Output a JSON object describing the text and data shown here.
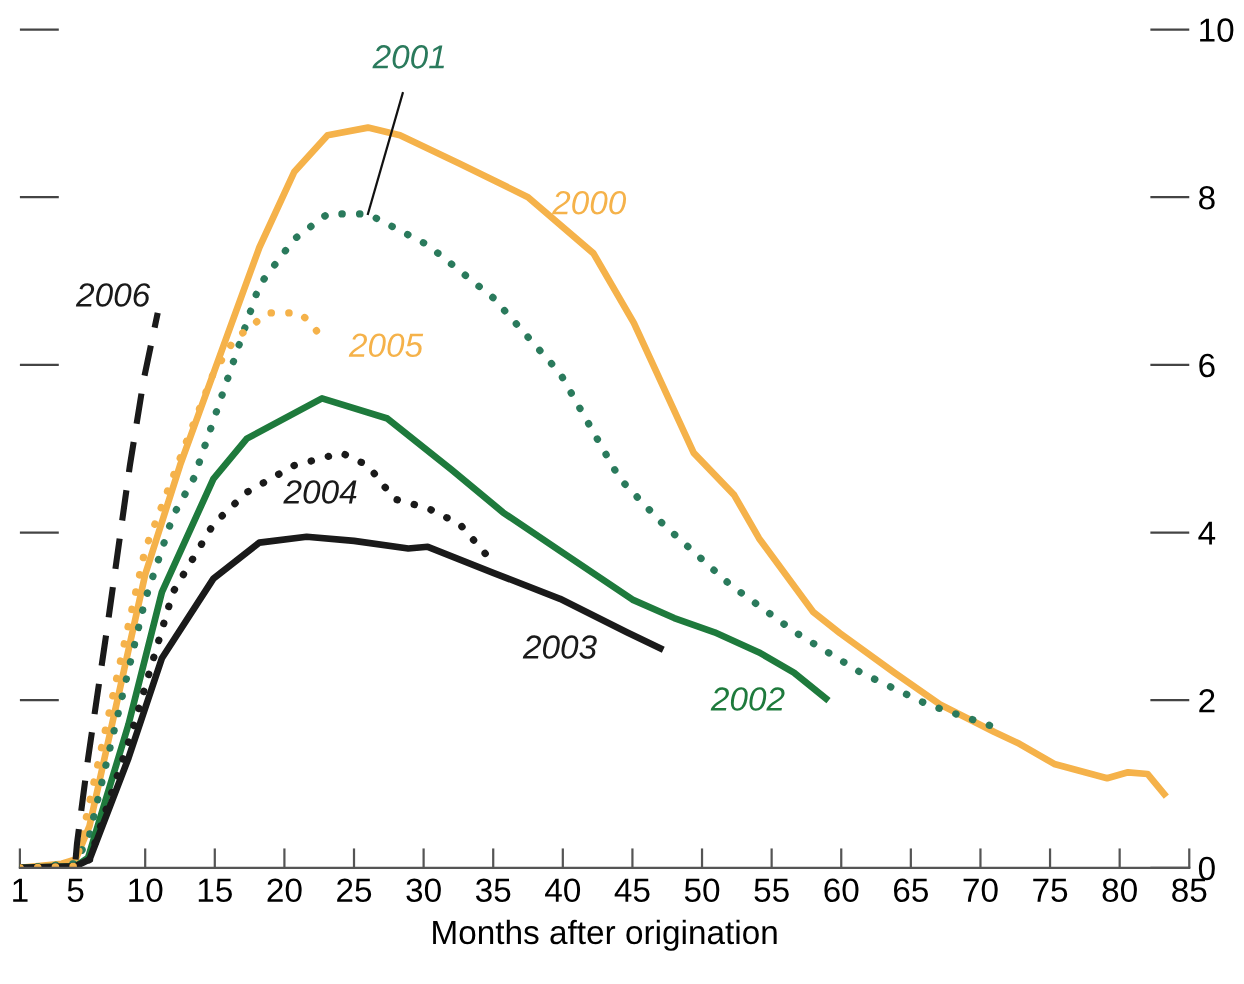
{
  "chart_data": {
    "type": "line",
    "xlabel": "Months after origination",
    "xlim": [
      1,
      85
    ],
    "xticks": [
      1,
      5,
      10,
      15,
      20,
      25,
      30,
      35,
      40,
      45,
      50,
      55,
      60,
      65,
      70,
      75,
      80,
      85
    ],
    "ylim": [
      0,
      10
    ],
    "yticks": [
      0,
      2,
      4,
      6,
      8,
      10
    ],
    "grid": false,
    "legend": false,
    "marker": "none",
    "series": [
      {
        "name": "2000",
        "color": "#f5b24a",
        "line_style": "solid",
        "x": [
          1,
          4,
          5,
          6,
          8,
          10,
          12.5,
          16,
          18.2,
          20.7,
          23.1,
          26,
          28.3,
          32.6,
          37.5,
          42.2,
          45.1,
          49.4,
          52.3,
          54.1,
          58,
          59.9,
          63.8,
          67.1,
          71,
          72.8,
          75.3,
          79.1,
          80.6,
          82,
          83.2
        ],
        "values": [
          0,
          0.05,
          0.1,
          0.5,
          2.0,
          3.5,
          4.8,
          6.4,
          7.4,
          8.3,
          8.74,
          8.83,
          8.74,
          8.4,
          8.0,
          7.33,
          6.5,
          4.95,
          4.45,
          3.93,
          3.05,
          2.8,
          2.33,
          1.95,
          1.62,
          1.48,
          1.24,
          1.07,
          1.14,
          1.12,
          0.88
        ]
      },
      {
        "name": "2001",
        "color": "#2a7a5c",
        "line_style": "dotted",
        "x": [
          1,
          5,
          6,
          8,
          10,
          12,
          13.5,
          18.2,
          20.7,
          23.1,
          26,
          30.3,
          35,
          39.8,
          44.1,
          47.2,
          52,
          56.7,
          61.4,
          66.2,
          71.2
        ],
        "values": [
          0,
          0.05,
          0.4,
          1.8,
          3.2,
          4.2,
          4.65,
          6.95,
          7.5,
          7.8,
          7.8,
          7.43,
          6.8,
          5.9,
          4.64,
          4.1,
          3.38,
          2.81,
          2.33,
          1.95,
          1.67
        ]
      },
      {
        "name": "2002",
        "color": "#1e7a3c",
        "line_style": "solid",
        "x": [
          1,
          5,
          5.9,
          8.8,
          11.2,
          14.9,
          17.3,
          22.7,
          27.4,
          32,
          35.7,
          40,
          45,
          48,
          50.9,
          54.1,
          56.6,
          58.9
        ],
        "values": [
          0,
          0.02,
          0.12,
          1.71,
          3.29,
          4.64,
          5.12,
          5.6,
          5.36,
          4.75,
          4.24,
          3.76,
          3.2,
          2.98,
          2.81,
          2.57,
          2.33,
          2.02
        ]
      },
      {
        "name": "2003",
        "color": "#1a1a1a",
        "line_style": "solid",
        "x": [
          1,
          5,
          6,
          8.8,
          11.2,
          14.9,
          18.2,
          21.6,
          25,
          28.9,
          30.3,
          35,
          39.8,
          44.6,
          47
        ],
        "values": [
          0,
          0.02,
          0.1,
          1.31,
          2.5,
          3.45,
          3.88,
          3.95,
          3.9,
          3.81,
          3.83,
          3.52,
          3.21,
          2.81,
          2.62
        ]
      },
      {
        "name": "2004",
        "color": "#1a1a1a",
        "line_style": "dotted",
        "x": [
          1,
          5,
          6,
          9,
          12,
          14.9,
          17.3,
          20.7,
          24.1,
          26,
          27.9,
          30.3,
          32.6,
          35
        ],
        "values": [
          0,
          0.02,
          0.1,
          1.6,
          3.29,
          4.1,
          4.48,
          4.8,
          4.95,
          4.8,
          4.4,
          4.29,
          4.1,
          3.64
        ]
      },
      {
        "name": "2005",
        "color": "#f5b24a",
        "line_style": "dotted",
        "x": [
          1,
          5,
          8,
          10,
          13,
          14.9,
          16.4,
          18.8,
          21.1,
          22,
          23
        ],
        "values": [
          0,
          0.02,
          2.3,
          3.8,
          5.1,
          5.9,
          6.3,
          6.62,
          6.62,
          6.48,
          6.24
        ]
      },
      {
        "name": "2006",
        "color": "#1a1a1a",
        "line_style": "dashed",
        "x": [
          5,
          5.1,
          5.9,
          7.3,
          8.9,
          9.9,
          10.9
        ],
        "values": [
          0.1,
          0.29,
          1.31,
          2.9,
          4.8,
          5.83,
          6.62
        ]
      }
    ]
  }
}
